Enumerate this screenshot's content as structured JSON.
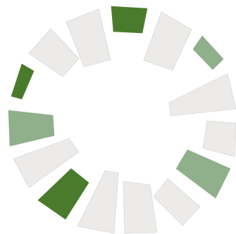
{
  "figure": {
    "colors": {
      "off": "#ecebea",
      "light": "#8fb08a",
      "dark": "#4a7a2c",
      "segment_edge": "#d0d0ce"
    },
    "segments": [
      {
        "name": "segment-top",
        "state": "dark"
      },
      {
        "name": "segment-upper-right",
        "state": "off"
      },
      {
        "name": "segment-right-small",
        "state": "light"
      },
      {
        "name": "segment-right-long",
        "state": "off"
      },
      {
        "name": "segment-right-lower",
        "state": "off"
      },
      {
        "name": "segment-lower-right",
        "state": "light"
      },
      {
        "name": "segment-bottom-right",
        "state": "off"
      },
      {
        "name": "segment-bottom-center",
        "state": "off"
      },
      {
        "name": "segment-bottom-left-center",
        "state": "off"
      },
      {
        "name": "segment-bottom-left",
        "state": "dark"
      },
      {
        "name": "segment-lower-left",
        "state": "off"
      },
      {
        "name": "segment-left",
        "state": "light"
      },
      {
        "name": "segment-left-upper",
        "state": "dark"
      },
      {
        "name": "segment-upper-left",
        "state": "off"
      },
      {
        "name": "segment-top-left",
        "state": "off"
      }
    ]
  }
}
